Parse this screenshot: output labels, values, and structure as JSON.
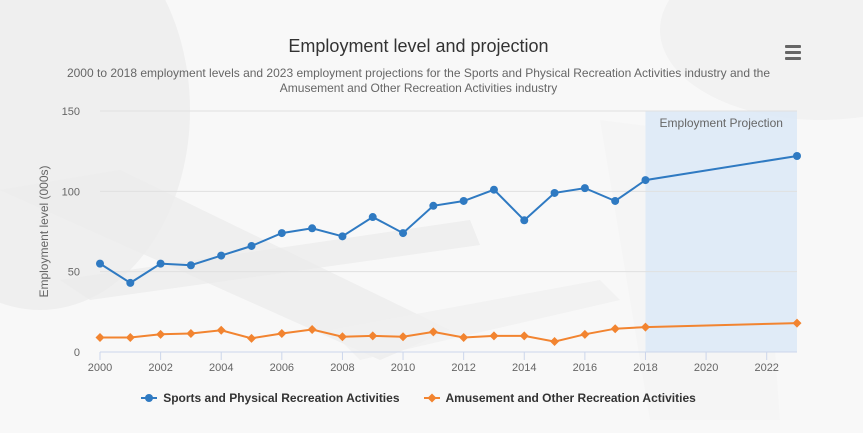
{
  "chart_data": {
    "type": "line",
    "title": "Employment level and projection",
    "subtitle": "2000 to 2018 employment levels and 2023 employment projections for the Sports and Physical Recreation Activities industry and the Amusement and Other Recreation Activities industry",
    "xlabel": "",
    "ylabel": "Employment level (000s)",
    "xlim": [
      2000,
      2023
    ],
    "ylim": [
      0,
      150
    ],
    "x_ticks": [
      2000,
      2002,
      2004,
      2006,
      2008,
      2010,
      2012,
      2014,
      2016,
      2018,
      2020,
      2022
    ],
    "y_ticks": [
      0,
      50,
      100,
      150
    ],
    "grid": true,
    "legend_position": "bottom",
    "projection_band": {
      "from": 2018,
      "to": 2023,
      "label": "Employment Projection",
      "color": "#dce9f7"
    },
    "series": [
      {
        "name": "Sports and Physical Recreation Activities",
        "color": "#2f7ac2",
        "marker": "circle",
        "points": [
          [
            2000,
            55
          ],
          [
            2001,
            43
          ],
          [
            2002,
            55
          ],
          [
            2003,
            54
          ],
          [
            2004,
            60
          ],
          [
            2005,
            66
          ],
          [
            2006,
            74
          ],
          [
            2007,
            77
          ],
          [
            2008,
            72
          ],
          [
            2009,
            84
          ],
          [
            2010,
            74
          ],
          [
            2011,
            91
          ],
          [
            2012,
            94
          ],
          [
            2013,
            101
          ],
          [
            2014,
            82
          ],
          [
            2015,
            99
          ],
          [
            2016,
            102
          ],
          [
            2017,
            94
          ],
          [
            2018,
            107
          ],
          [
            2023,
            122
          ]
        ]
      },
      {
        "name": "Amusement and Other Recreation Activities",
        "color": "#f28430",
        "marker": "diamond",
        "points": [
          [
            2000,
            9
          ],
          [
            2001,
            9
          ],
          [
            2002,
            11
          ],
          [
            2003,
            11.5
          ],
          [
            2004,
            13.5
          ],
          [
            2005,
            8.5
          ],
          [
            2006,
            11.5
          ],
          [
            2007,
            14
          ],
          [
            2008,
            9.5
          ],
          [
            2009,
            10
          ],
          [
            2010,
            9.5
          ],
          [
            2011,
            12.5
          ],
          [
            2012,
            9
          ],
          [
            2013,
            10
          ],
          [
            2014,
            10
          ],
          [
            2015,
            6.5
          ],
          [
            2016,
            11
          ],
          [
            2017,
            14.5
          ],
          [
            2018,
            15.5
          ],
          [
            2023,
            18
          ]
        ]
      }
    ]
  },
  "menu": {
    "icon": "hamburger-menu-icon"
  }
}
